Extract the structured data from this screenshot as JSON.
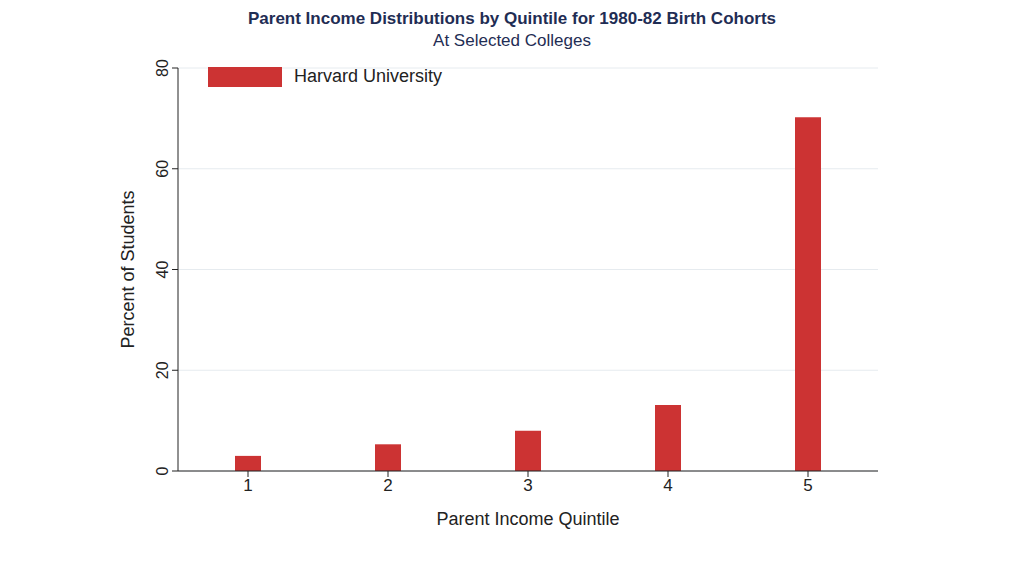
{
  "chart_data": {
    "type": "bar",
    "title": "Parent Income Distributions by Quintile for 1980-82 Birth Cohorts",
    "subtitle": "At Selected Colleges",
    "x_label": "Parent Income Quintile",
    "y_label": "Percent of Students",
    "categories": [
      "1",
      "2",
      "3",
      "4",
      "5"
    ],
    "series": [
      {
        "name": "Harvard University",
        "color": "#cc3333",
        "values": [
          3,
          5.3,
          8,
          13.1,
          70.2
        ]
      }
    ],
    "ylim": [
      0,
      80
    ],
    "yticks": [
      0,
      20,
      40,
      60,
      80
    ],
    "grid": true,
    "legend": "upper left"
  }
}
